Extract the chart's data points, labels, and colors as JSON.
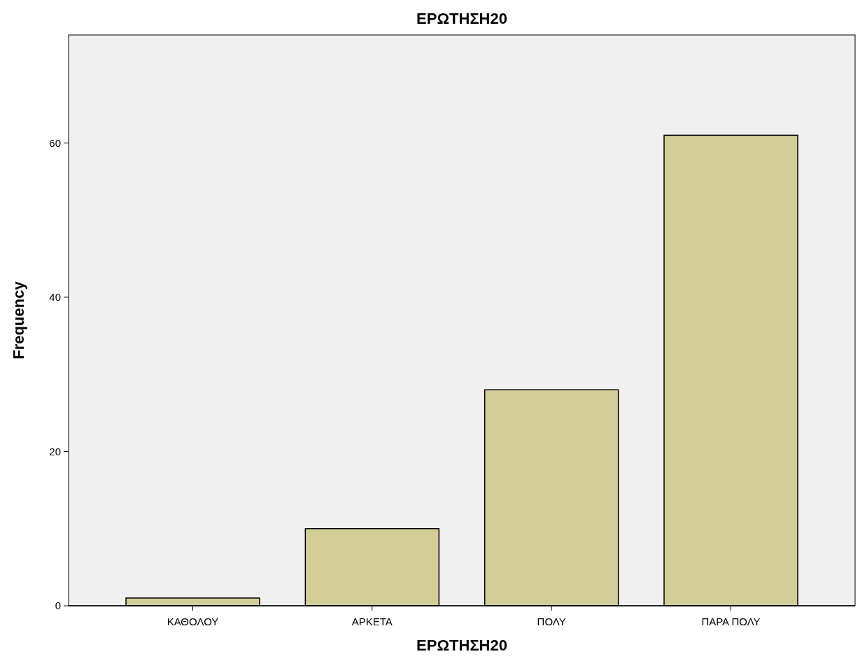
{
  "chart_data": {
    "type": "bar",
    "title": "ΕΡΩΤΗΣΗ20",
    "xlabel": "ΕΡΩΤΗΣΗ20",
    "ylabel": "Frequency",
    "categories": [
      "ΚΑΘΟΛΟΥ",
      "ΑΡΚΕΤΑ",
      "ΠΟΛΥ",
      "ΠΑΡΑ ΠΟΛΥ"
    ],
    "values": [
      1,
      10,
      28,
      61
    ],
    "color": "#d3ce97",
    "ylim": [
      0,
      74
    ],
    "yticks": [
      0,
      20,
      40,
      60
    ],
    "grid": false
  }
}
